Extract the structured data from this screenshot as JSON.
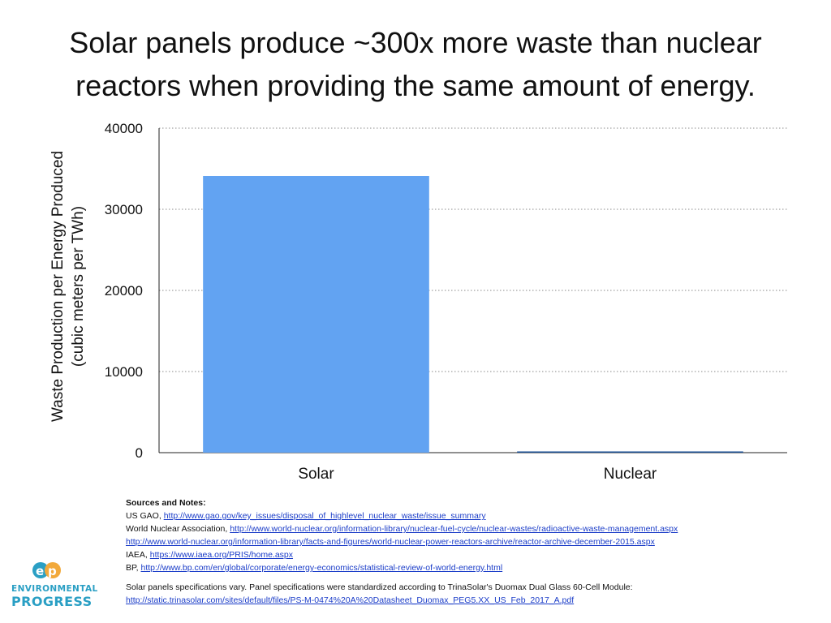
{
  "title": {
    "line1": "Solar panels produce ~300x more waste than nuclear",
    "line2": "reactors when providing the same amount of energy."
  },
  "chart_data": {
    "type": "bar",
    "categories": [
      "Solar",
      "Nuclear"
    ],
    "values": [
      34100,
      150
    ],
    "ylim": [
      0,
      40000
    ],
    "yticks": [
      0,
      10000,
      20000,
      30000,
      40000
    ],
    "ytick_labels": [
      "0",
      "10000",
      "20000",
      "30000",
      "40000"
    ],
    "ylabel_line1": "Waste Production per Energy Produced",
    "ylabel_line2": "(cubic meters per TWh)",
    "xlabel": "",
    "grid": "horizontal dotted",
    "legend": "none",
    "bar_colors": [
      "#62a3f2",
      "#1b4f95"
    ]
  },
  "notes": {
    "heading": "Sources and Notes:",
    "lines": [
      {
        "text": "US GAO, ",
        "link": "http://www.gao.gov/key_issues/disposal_of_highlevel_nuclear_waste/issue_summary"
      },
      {
        "text": "World Nuclear Association, ",
        "link": "http://www.world-nuclear.org/information-library/nuclear-fuel-cycle/nuclear-wastes/radioactive-waste-management.aspx"
      },
      {
        "text": "",
        "link": "http://www.world-nuclear.org/information-library/facts-and-figures/world-nuclear-power-reactors-archive/reactor-archive-december-2015.aspx"
      },
      {
        "text": "IAEA, ",
        "link": "https://www.iaea.org/PRIS/home.aspx"
      },
      {
        "text": "BP, ",
        "link": "http://www.bp.com/en/global/corporate/energy-economics/statistical-review-of-world-energy.html"
      }
    ],
    "spec_note": "Solar panels specifications vary. Panel specifications were standardized according to TrinaSolar's Duomax Dual Glass 60-Cell Module:",
    "spec_link": "http://static.trinasolar.com/sites/default/files/PS-M-0474%20A%20Datasheet_Duomax_PEG5.XX_US_Feb_2017_A.pdf"
  },
  "logo": {
    "icon": "environmental-progress-logo-icon",
    "line1": "ENVIRONMENTAL",
    "line2": "PROGRESS",
    "colors": {
      "primary": "#2a9fc4",
      "secondary": "#f2a93b"
    }
  }
}
